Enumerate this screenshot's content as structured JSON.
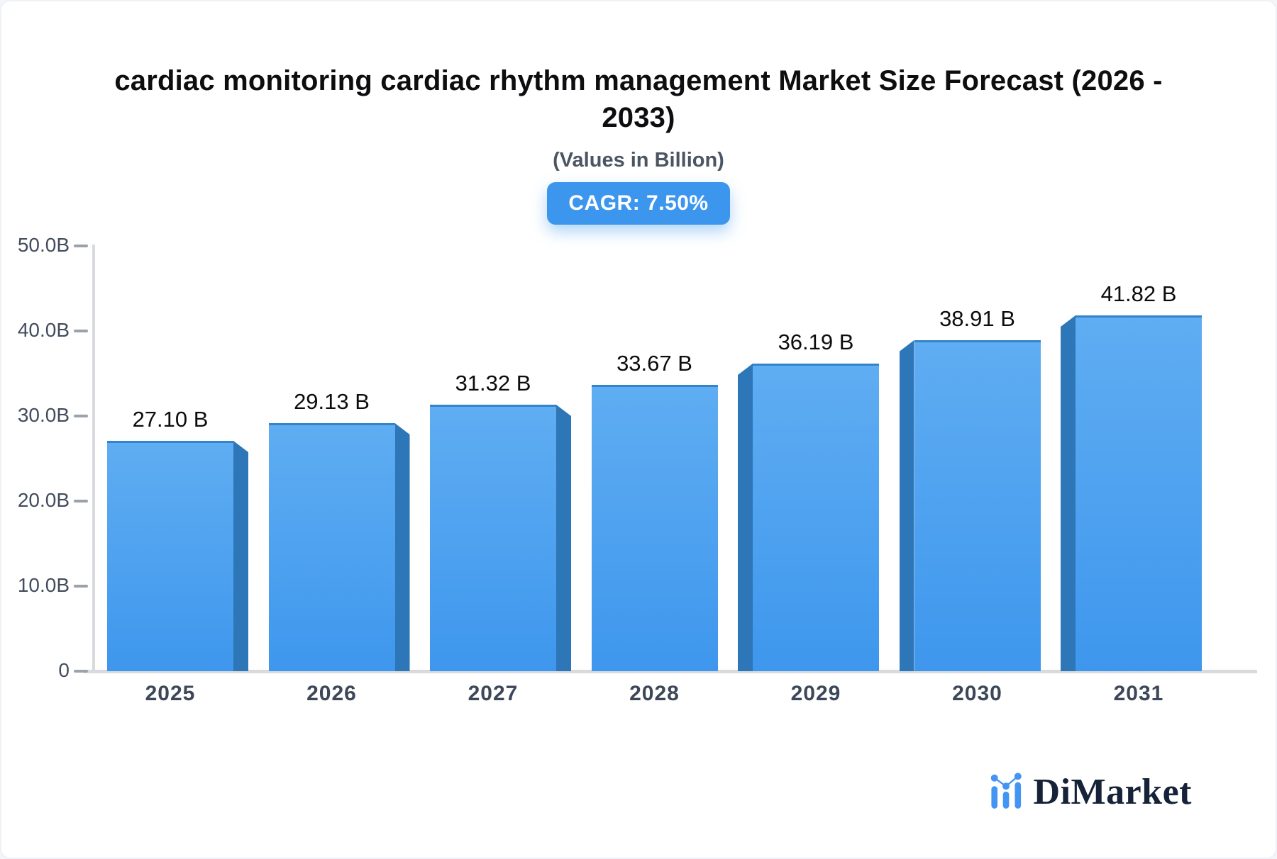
{
  "header": {
    "title_lines": [
      "cardiac monitoring cardiac rhythm management Market Size Forecast (2026 -",
      "2033)"
    ],
    "subtitle": "(Values in Billion)",
    "cagr_label": "CAGR: 7.50%"
  },
  "chart_data": {
    "type": "bar",
    "title": "cardiac monitoring cardiac rhythm management Market Size Forecast (2026 - 2033)",
    "subtitle": "(Values in Billion)",
    "cagr_percent": 7.5,
    "unit": "Billion",
    "categories": [
      "2025",
      "2026",
      "2027",
      "2028",
      "2029",
      "2030",
      "2031"
    ],
    "values": [
      27.1,
      29.13,
      31.32,
      33.67,
      36.19,
      38.91,
      41.82
    ],
    "value_labels": [
      "27.10 B",
      "29.13 B",
      "31.32 B",
      "33.67 B",
      "36.19 B",
      "38.91 B",
      "41.82 B"
    ],
    "ylim": [
      0,
      50
    ],
    "yticks": [
      {
        "value": 0,
        "label": "0"
      },
      {
        "value": 10,
        "label": "10.0B"
      },
      {
        "value": 20,
        "label": "20.0B"
      },
      {
        "value": 30,
        "label": "30.0B"
      },
      {
        "value": 40,
        "label": "40.0B"
      },
      {
        "value": 50,
        "label": "50.0B"
      }
    ],
    "grid": false,
    "legend_position": "none",
    "bar_style": "3d-center-vanishing",
    "colors": {
      "bar_face_top": "#5fadf2",
      "bar_face_bottom": "#3e97ed",
      "bar_top_edge": "#3484ca",
      "bar_side": "#2d76b8",
      "accent": "#3d96ee",
      "axis": "#d8dade",
      "tick": "#9aa2ac",
      "y_label": "#434c5c",
      "x_label": "#3c4758",
      "value_label": "#0d0d0d"
    }
  },
  "footer": {
    "brand": "DiMarket",
    "logo_icon": "dimarket-bars-trend-icon",
    "logo_color": "#4495f3",
    "brand_text_color": "#152238"
  }
}
